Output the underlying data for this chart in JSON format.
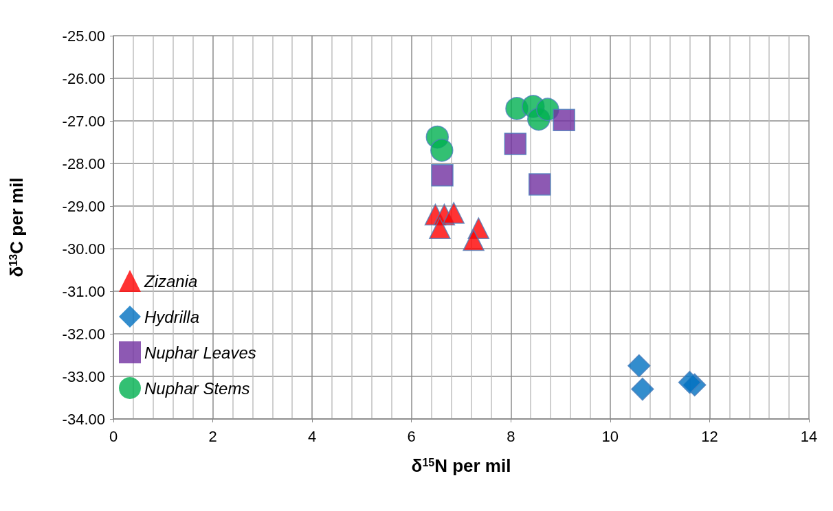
{
  "chart_data": {
    "type": "scatter",
    "xlabel": "δ$^{15}$N per mil",
    "ylabel": "δ$^{13}$C per mil",
    "xlim": [
      0,
      14
    ],
    "xticks": [
      0,
      2,
      4,
      6,
      8,
      10,
      12,
      14
    ],
    "ylim": [
      -34,
      -25
    ],
    "yticks": [
      {
        "value": -34,
        "label": "-34.00"
      },
      {
        "value": -33,
        "label": "-33.00"
      },
      {
        "value": -32,
        "label": "-32.00"
      },
      {
        "value": -31,
        "label": "-31.00"
      },
      {
        "value": -30,
        "label": "-30.00"
      },
      {
        "value": -29,
        "label": "-29.00"
      },
      {
        "value": -28,
        "label": "-28.00"
      },
      {
        "value": -27,
        "label": "-27.00"
      },
      {
        "value": -26,
        "label": "-26.00"
      },
      {
        "value": -25,
        "label": "-25.00"
      }
    ],
    "grid": true,
    "legend": "left",
    "series": [
      {
        "name": "Zizania",
        "color": "#ff0000",
        "marker": "triangle",
        "x": [
          6.48,
          6.66,
          6.85,
          6.57,
          7.35,
          7.25
        ],
        "values": [
          -29.2,
          -29.2,
          -29.16,
          -29.52,
          -29.52,
          -29.8
        ]
      },
      {
        "name": "Hydrilla",
        "color": "#0070c0",
        "marker": "diamond",
        "x": [
          10.58,
          10.65,
          11.7,
          11.6
        ],
        "values": [
          -32.75,
          -33.3,
          -33.2,
          -33.14
        ]
      },
      {
        "name": "Nuphar Leaves",
        "color": "#7030a0",
        "marker": "square",
        "x": [
          6.62,
          8.09,
          9.07,
          8.58
        ],
        "values": [
          -28.28,
          -27.54,
          -26.98,
          -28.49
        ]
      },
      {
        "name": "Nuphar Stems",
        "color": "#00b050",
        "marker": "circle",
        "x": [
          6.52,
          6.61,
          8.12,
          8.45,
          8.56,
          8.74
        ],
        "values": [
          -27.38,
          -27.69,
          -26.71,
          -26.66,
          -26.96,
          -26.73
        ]
      }
    ]
  }
}
